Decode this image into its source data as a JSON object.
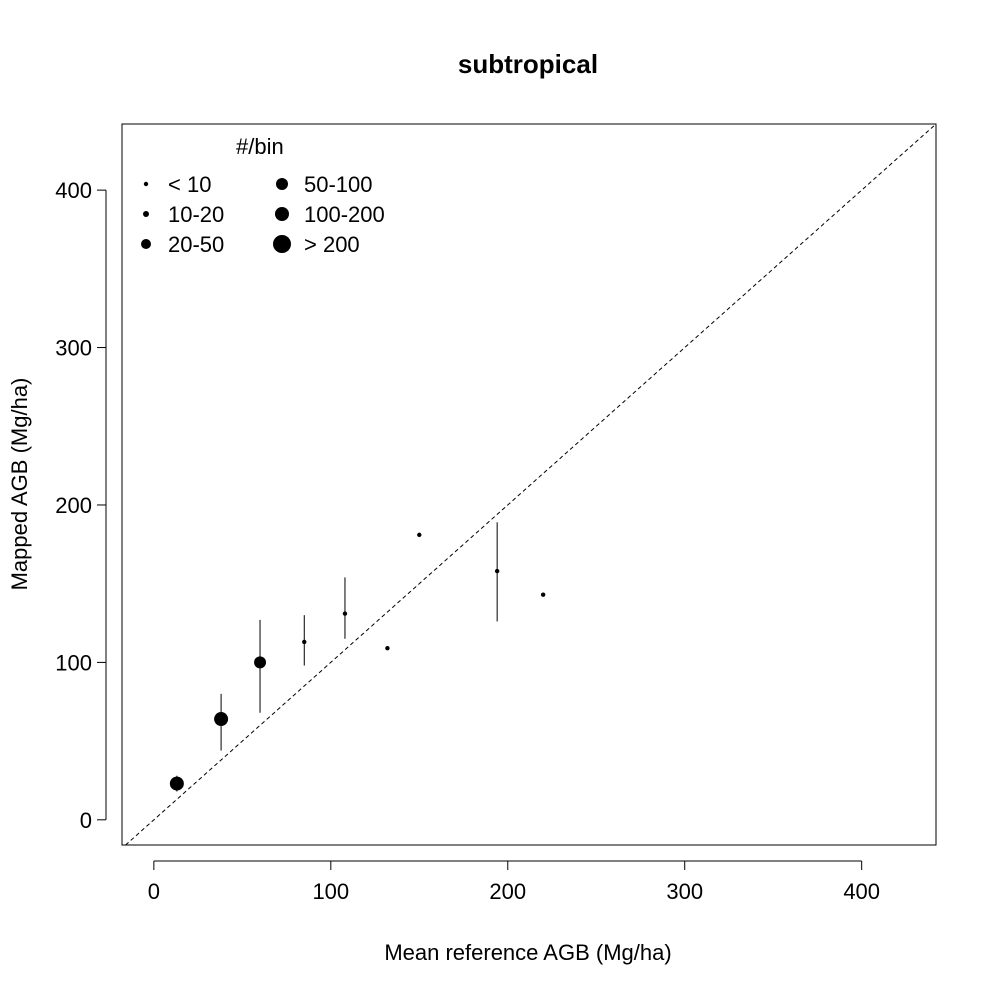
{
  "chart_data": {
    "type": "scatter",
    "title": "subtropical",
    "xlabel": "Mean reference AGB (Mg/ha)",
    "ylabel": "Mapped AGB (Mg/ha)",
    "xlim": [
      -18,
      442
    ],
    "ylim": [
      -16,
      442
    ],
    "xticks": [
      0,
      100,
      200,
      300,
      400
    ],
    "yticks": [
      0,
      100,
      200,
      300,
      400
    ],
    "reference_line": {
      "type": "1:1",
      "style": "dashed"
    },
    "grid": false,
    "legend": {
      "title": "#/bin",
      "placement": "top-left",
      "entries": [
        {
          "label": "< 10",
          "size": 1
        },
        {
          "label": "10-20",
          "size": 2
        },
        {
          "label": "20-50",
          "size": 3
        },
        {
          "label": "50-100",
          "size": 4
        },
        {
          "label": "100-200",
          "size": 5
        },
        {
          "label": "> 200",
          "size": 6
        }
      ]
    },
    "series": [
      {
        "points": [
          {
            "x": 13,
            "y": 23,
            "low": 18,
            "high": 28,
            "bin_size": 5
          },
          {
            "x": 38,
            "y": 64,
            "low": 44,
            "high": 80,
            "bin_size": 5
          },
          {
            "x": 60,
            "y": 100,
            "low": 68,
            "high": 127,
            "bin_size": 4
          },
          {
            "x": 85,
            "y": 113,
            "low": 98,
            "high": 130,
            "bin_size": 1
          },
          {
            "x": 108,
            "y": 131,
            "low": 115,
            "high": 154,
            "bin_size": 1
          },
          {
            "x": 132,
            "y": 109,
            "low": null,
            "high": null,
            "bin_size": 1
          },
          {
            "x": 150,
            "y": 181,
            "low": null,
            "high": null,
            "bin_size": 1
          },
          {
            "x": 194,
            "y": 158,
            "low": 126,
            "high": 189,
            "bin_size": 1
          },
          {
            "x": 220,
            "y": 143,
            "low": null,
            "high": null,
            "bin_size": 1
          }
        ]
      }
    ]
  }
}
